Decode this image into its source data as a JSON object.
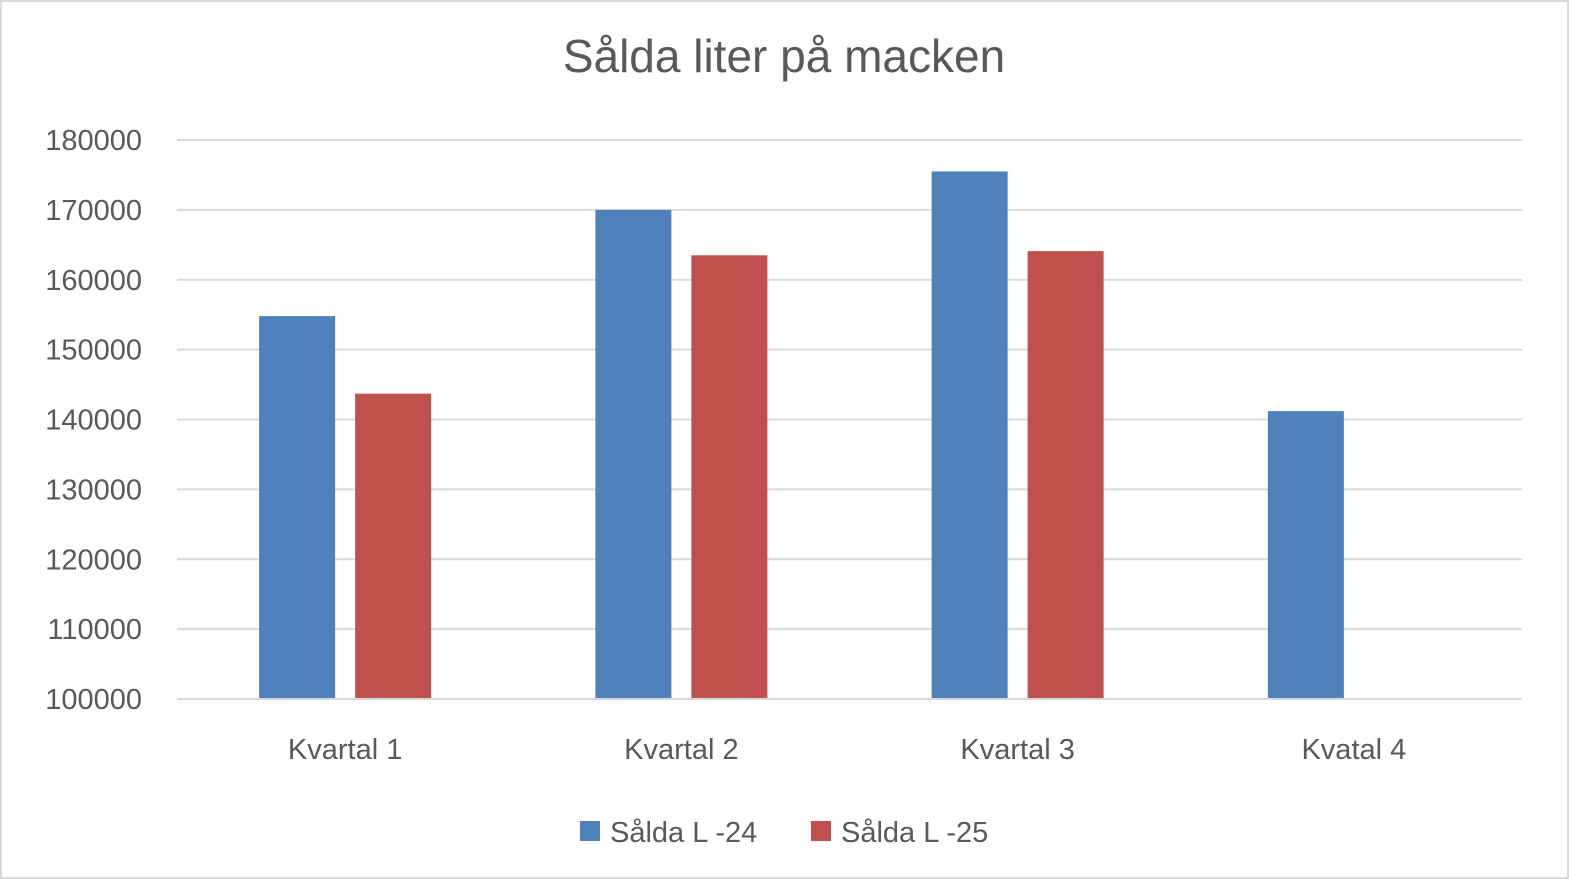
{
  "chart_data": {
    "type": "bar",
    "title": "Sålda liter på macken",
    "categories": [
      "Kvartal 1",
      "Kvartal 2",
      "Kvartal 3",
      "Kvatal 4"
    ],
    "series": [
      {
        "name": "Sålda L -24",
        "color": "#4f81bd",
        "values": [
          154800,
          170000,
          175500,
          141200
        ]
      },
      {
        "name": "Sålda L -25",
        "color": "#c0504d",
        "values": [
          143700,
          163500,
          164100,
          null
        ]
      }
    ],
    "ylim": [
      100000,
      180000
    ],
    "yticks": [
      100000,
      110000,
      120000,
      130000,
      140000,
      150000,
      160000,
      170000,
      180000
    ],
    "ytick_labels": [
      "100000",
      "110000",
      "120000",
      "130000",
      "140000",
      "150000",
      "160000",
      "170000",
      "180000"
    ],
    "xlabel": "",
    "ylabel": "",
    "grid": true,
    "legend_position": "bottom"
  }
}
